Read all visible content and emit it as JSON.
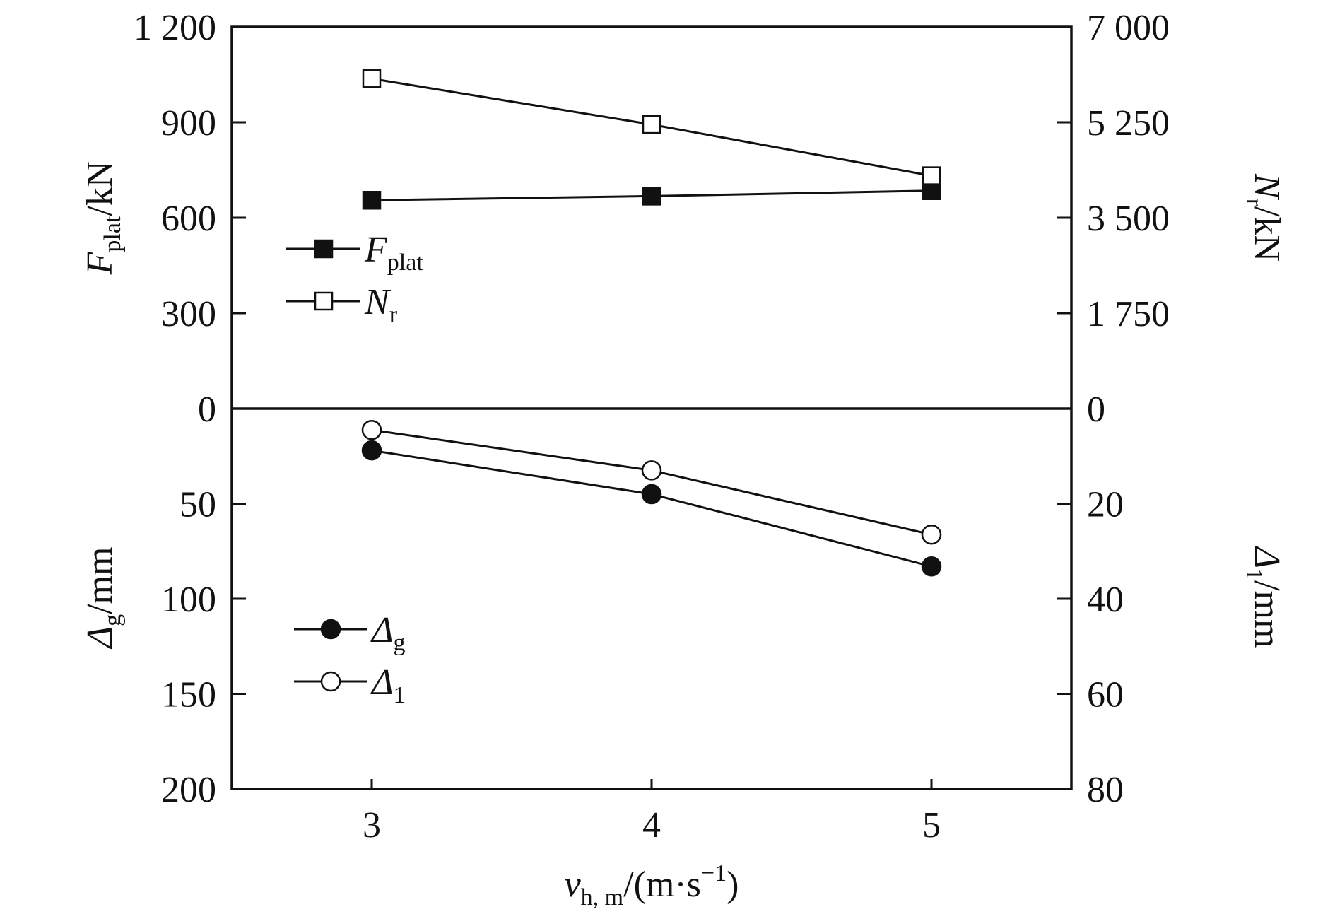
{
  "chart_data": [
    {
      "type": "line",
      "panel": "top",
      "x": [
        3,
        4,
        5
      ],
      "left_axis": {
        "label_main": "F",
        "label_sub": "plat",
        "label_unit": "/kN",
        "ticks": [
          "0",
          "300",
          "600",
          "900",
          "1 200"
        ],
        "ylim": [
          0,
          1200
        ]
      },
      "right_axis": {
        "label_main": "N",
        "label_sub": "r",
        "label_unit": "/kN",
        "ticks": [
          "0",
          "1 750",
          "3 500",
          "5 250",
          "7 000"
        ],
        "ylim": [
          0,
          7000
        ]
      },
      "series": [
        {
          "name_main": "F",
          "name_sub": "plat",
          "axis": "left",
          "marker": "square-filled",
          "values": [
            655,
            668,
            685
          ]
        },
        {
          "name_main": "N",
          "name_sub": "r",
          "axis": "right",
          "marker": "square-open",
          "values": [
            6050,
            5210,
            4270
          ]
        }
      ],
      "legend_position": "middle-left"
    },
    {
      "type": "line",
      "panel": "bottom",
      "x": [
        3,
        4,
        5
      ],
      "inverted_y": true,
      "left_axis": {
        "label_main": "Δ",
        "label_sub": "g",
        "label_unit": "/mm",
        "ticks": [
          "50",
          "100",
          "150",
          "200"
        ],
        "ylim": [
          0,
          200
        ]
      },
      "right_axis": {
        "label_main": "Δ",
        "label_sub": "1",
        "label_unit": "/mm",
        "ticks": [
          "20",
          "40",
          "60",
          "80"
        ],
        "ylim": [
          0,
          80
        ]
      },
      "series": [
        {
          "name_main": "Δ",
          "name_sub": "g",
          "axis": "left",
          "marker": "circle-filled",
          "values": [
            22,
            45,
            83
          ]
        },
        {
          "name_main": "Δ",
          "name_sub": "1",
          "axis": "right",
          "marker": "circle-open",
          "values": [
            4.5,
            13,
            26.5
          ]
        }
      ],
      "legend_position": "lower-left"
    }
  ],
  "x_axis": {
    "ticks": [
      "3",
      "4",
      "5"
    ],
    "values": [
      3,
      4,
      5
    ],
    "xlim": [
      2.5,
      5.5
    ],
    "label_main": "v",
    "label_sub": "h, m",
    "label_unit": "/(m·s",
    "label_sup": "−1",
    "label_close": ")"
  }
}
